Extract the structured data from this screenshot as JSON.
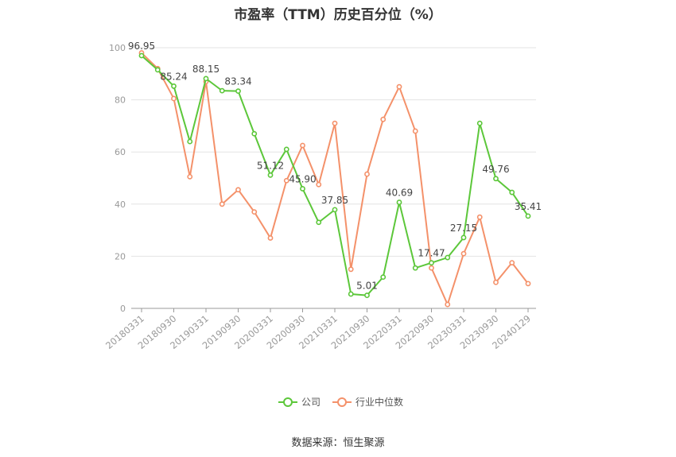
{
  "chart_data": {
    "type": "line",
    "title": "市盈率（TTM）历史百分位（%）",
    "source": "数据来源：恒生聚源",
    "ylim": [
      0,
      100
    ],
    "y_ticks": [
      "0",
      "20",
      "40",
      "60",
      "80",
      "100"
    ],
    "x_tick_labels": [
      "20180331",
      "20180930",
      "20190331",
      "20190930",
      "20200331",
      "20200930",
      "20210331",
      "20210930",
      "20220331",
      "20220930",
      "20230331",
      "20230930",
      "20240129"
    ],
    "grid": true,
    "legend_position": "bottom",
    "series": [
      {
        "name": "公司",
        "color": "#5cc73a",
        "values": [
          96.95,
          91.5,
          85.24,
          64.0,
          88.15,
          83.5,
          83.34,
          67.0,
          51.12,
          61.0,
          45.9,
          33.0,
          37.85,
          5.5,
          5.01,
          12.0,
          40.69,
          15.5,
          17.47,
          19.5,
          27.15,
          71.0,
          49.76,
          44.5,
          35.41
        ],
        "labels": [
          "96.95",
          "",
          "85.24",
          "",
          "88.15",
          "",
          "83.34",
          "",
          "51.12",
          "",
          "45.90",
          "",
          "37.85",
          "",
          "5.01",
          "",
          "40.69",
          "",
          "17.47",
          "",
          "27.15",
          "",
          "49.76",
          "",
          "35.41"
        ]
      },
      {
        "name": "行业中位数",
        "color": "#f4916a",
        "values": [
          98.0,
          92.0,
          80.5,
          50.5,
          87.0,
          40.0,
          45.5,
          37.0,
          27.0,
          49.0,
          62.5,
          47.5,
          71.0,
          15.0,
          51.5,
          72.5,
          85.0,
          68.0,
          15.5,
          1.5,
          21.0,
          35.0,
          10.0,
          17.5,
          9.5
        ]
      }
    ]
  }
}
